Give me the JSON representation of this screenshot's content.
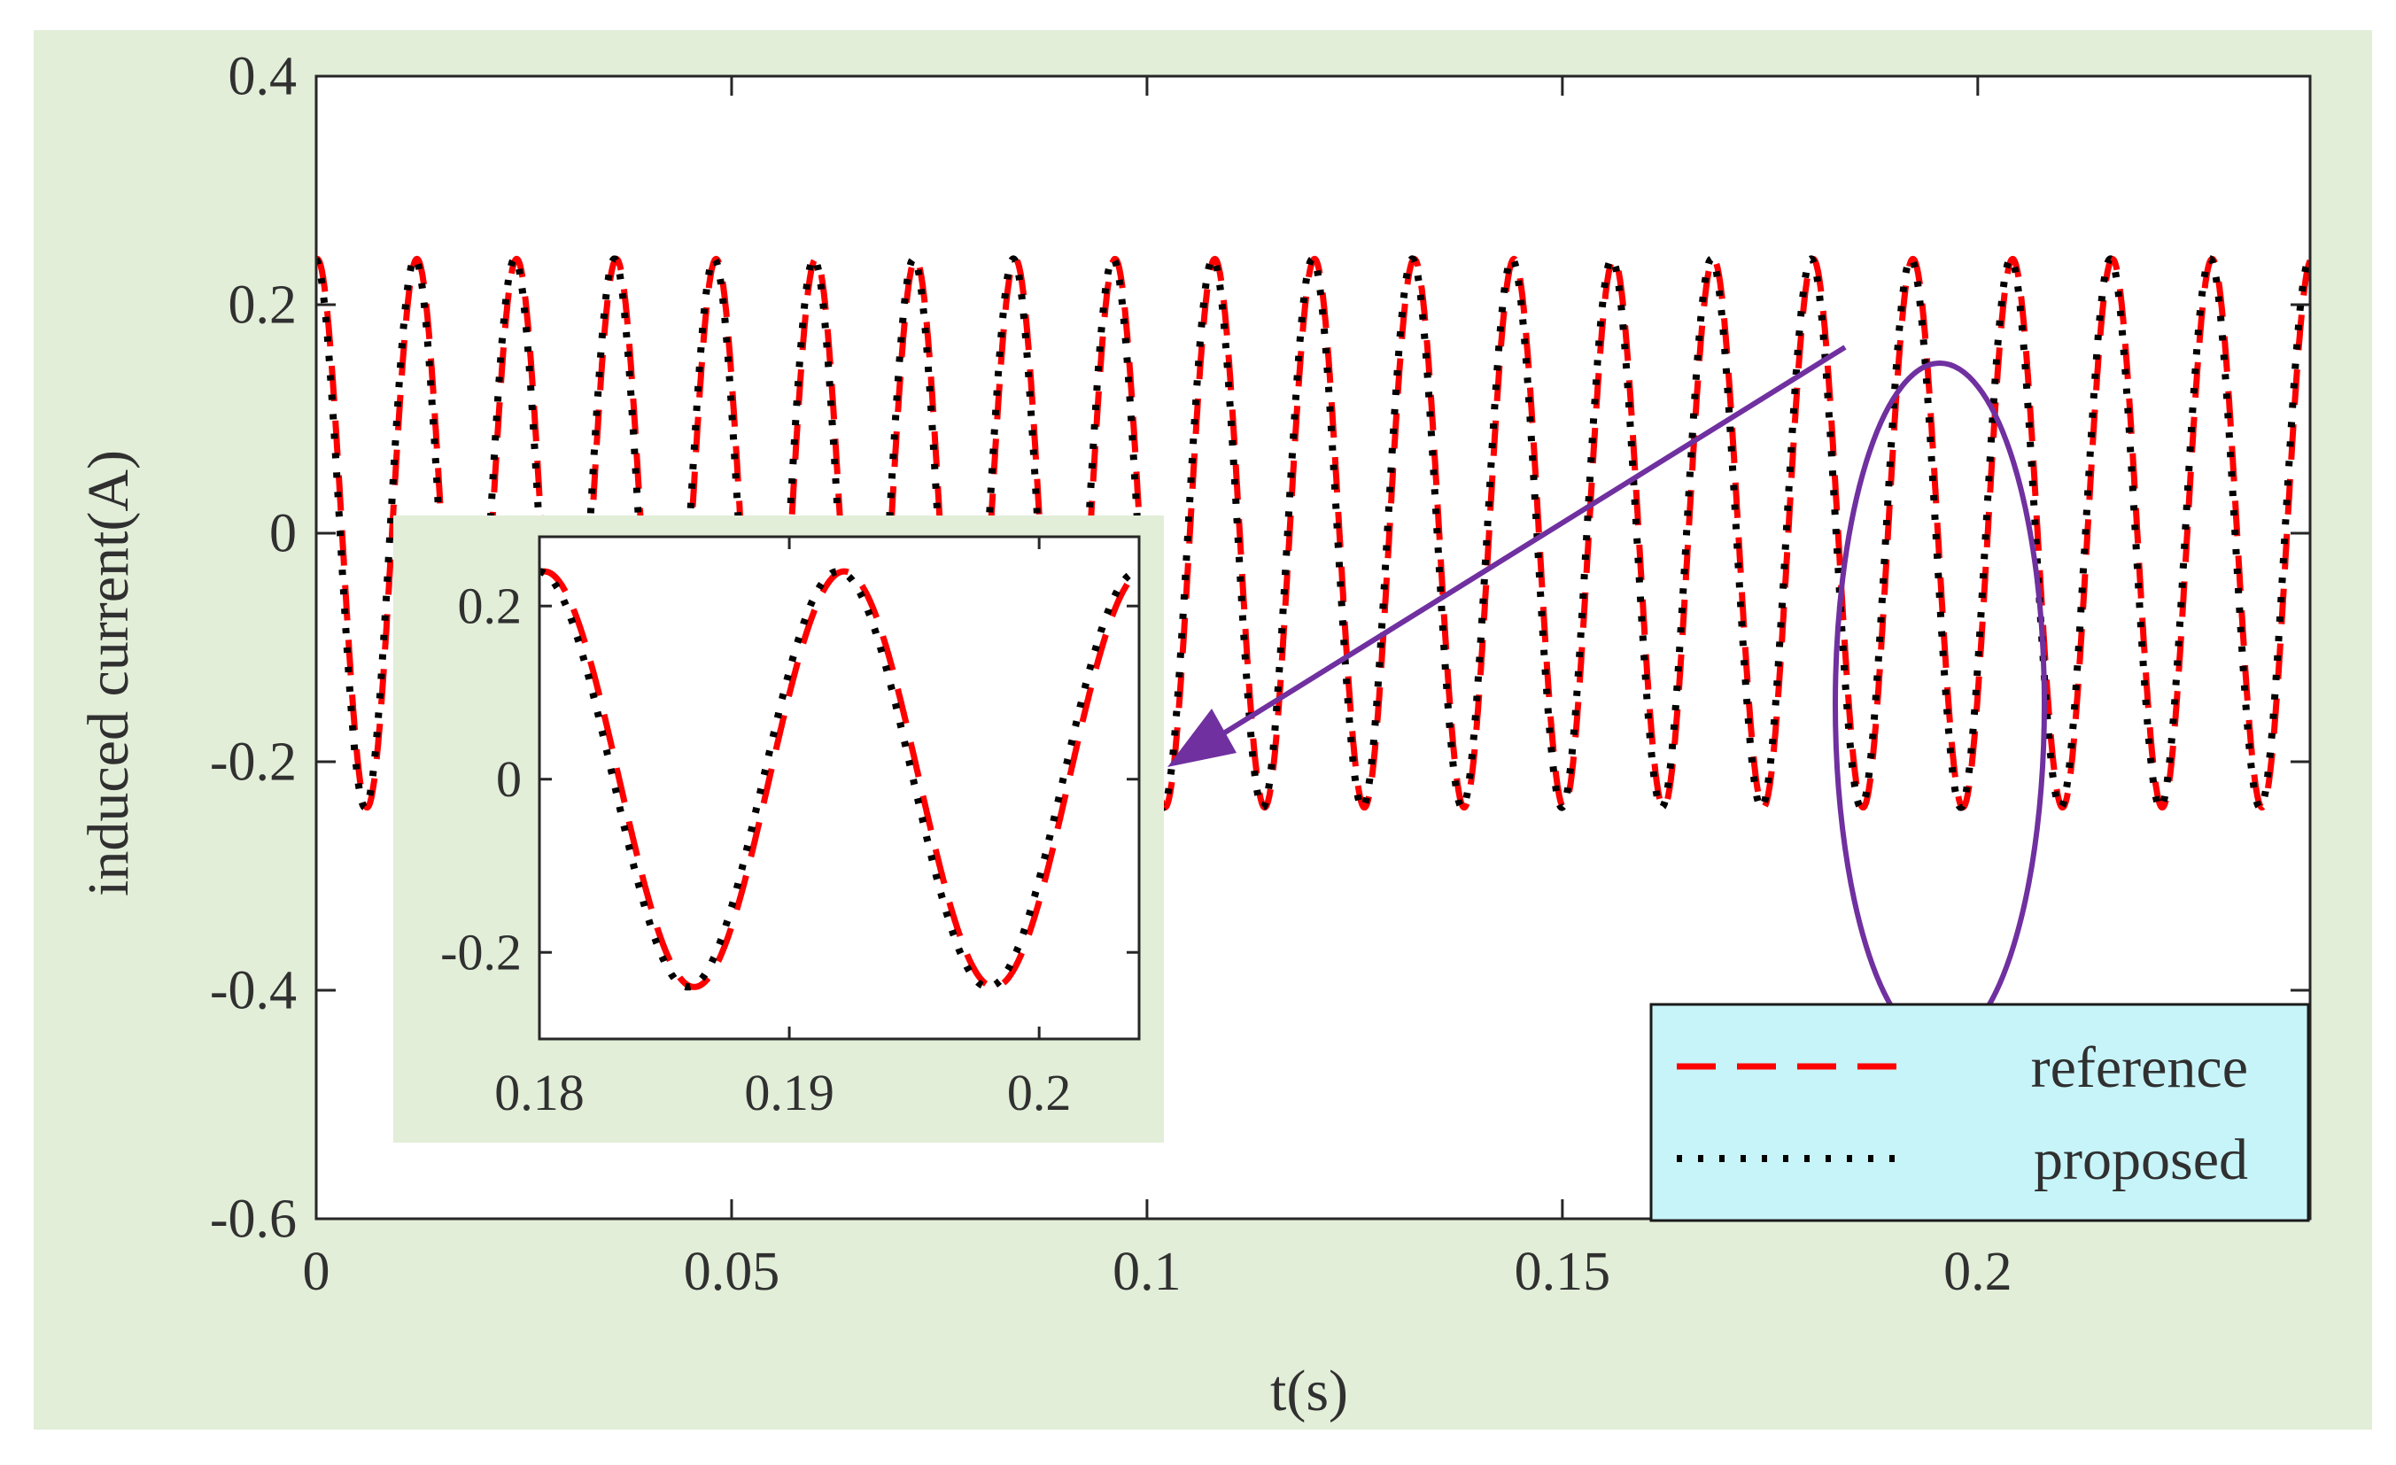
{
  "colors": {
    "figure_background": "#e2eed8",
    "axes_background": "#ffffff",
    "reference_line": "#ff0000",
    "proposed_line": "#000000",
    "annotation": "#7030a0",
    "legend_background": "#c7f4f8"
  },
  "chart_data": [
    {
      "type": "line",
      "xlabel": "t(s)",
      "ylabel": "induced current(A)",
      "xlim": [
        0,
        0.24
      ],
      "ylim": [
        -0.6,
        0.4
      ],
      "xticks": [
        0,
        0.05,
        0.1,
        0.15,
        0.2
      ],
      "xtick_labels": [
        "0",
        "0.05",
        "0.1",
        "0.15",
        "0.2"
      ],
      "yticks": [
        -0.6,
        -0.4,
        -0.2,
        0,
        0.2,
        0.4
      ],
      "ytick_labels": [
        "-0.6",
        "-0.4",
        "-0.2",
        "0",
        "0.2",
        "0.4"
      ],
      "grid": false,
      "legend_position": "bottom-right",
      "series": [
        {
          "name": "reference",
          "style": "dashed",
          "function": "sine",
          "amplitude": 0.24,
          "frequency_hz": 83.3,
          "phase": "cosine",
          "t_range": [
            0,
            0.24
          ]
        },
        {
          "name": "proposed",
          "style": "dotted",
          "function": "sine",
          "amplitude": 0.24,
          "frequency_hz": 83.3,
          "phase": "cosine",
          "t_range": [
            0,
            0.24
          ]
        }
      ]
    },
    {
      "type": "line",
      "role": "zoom inset",
      "xlim": [
        0.18,
        0.204
      ],
      "ylim": [
        -0.3,
        0.28
      ],
      "xticks": [
        0.18,
        0.19,
        0.2
      ],
      "xtick_labels": [
        "0.18",
        "0.19",
        "0.2"
      ],
      "yticks": [
        -0.2,
        0,
        0.2
      ],
      "ytick_labels": [
        "-0.2",
        "0",
        "0.2"
      ],
      "grid": false,
      "series": [
        {
          "name": "reference",
          "style": "dashed",
          "amplitude": 0.24,
          "frequency_hz": 83.3
        },
        {
          "name": "proposed",
          "style": "dotted",
          "amplitude": 0.24,
          "frequency_hz": 83.3
        }
      ]
    }
  ]
}
